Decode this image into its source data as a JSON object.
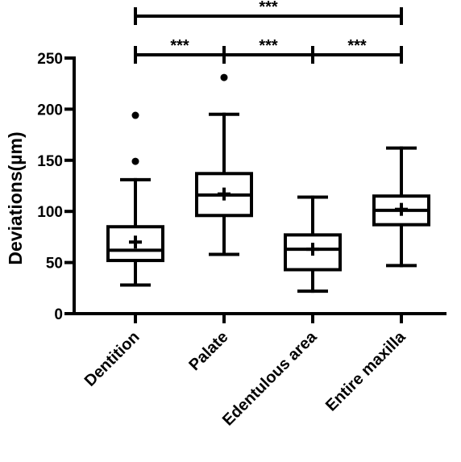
{
  "chart_data": {
    "type": "box",
    "title": "",
    "xlabel": "",
    "ylabel": "Deviations(µm)",
    "ylim": [
      0,
      250
    ],
    "yticks": [
      0,
      50,
      100,
      150,
      200,
      250
    ],
    "ytick_labels": [
      "0",
      "50",
      "100",
      "150",
      "200",
      "250"
    ],
    "grid": false,
    "legend": "none",
    "colors": {
      "stroke": "#000000",
      "fill": "#ffffff"
    },
    "categories": [
      "Dentition",
      "Palate",
      "Edentulous area",
      "Entire maxilla"
    ],
    "boxes": [
      {
        "category": "Dentition",
        "whisker_low": 28,
        "q1": 52,
        "median": 62,
        "q3": 85,
        "whisker_high": 131,
        "mean": 70,
        "outliers": [
          149,
          194
        ]
      },
      {
        "category": "Palate",
        "whisker_low": 58,
        "q1": 96,
        "median": 116,
        "q3": 137,
        "whisker_high": 195,
        "mean": 117,
        "outliers": [
          231
        ]
      },
      {
        "category": "Edentulous area",
        "whisker_low": 22,
        "q1": 43,
        "median": 63,
        "q3": 77,
        "whisker_high": 114,
        "mean": 63,
        "outliers": []
      },
      {
        "category": "Entire maxilla",
        "whisker_low": 47,
        "q1": 87,
        "median": 101,
        "q3": 115,
        "whisker_high": 162,
        "mean": 102,
        "outliers": []
      }
    ],
    "significance": [
      {
        "label": "***",
        "from": 0,
        "to": 3,
        "ticks": [
          0,
          3
        ],
        "row": 0
      },
      {
        "label": "***",
        "from": 0,
        "to": 1,
        "ticks": [
          0,
          1
        ],
        "row": 1
      },
      {
        "label": "***",
        "from": 1,
        "to": 2,
        "ticks": [
          1,
          2
        ],
        "row": 1
      },
      {
        "label": "***",
        "from": 2,
        "to": 3,
        "ticks": [
          2,
          3
        ],
        "row": 1
      }
    ]
  }
}
